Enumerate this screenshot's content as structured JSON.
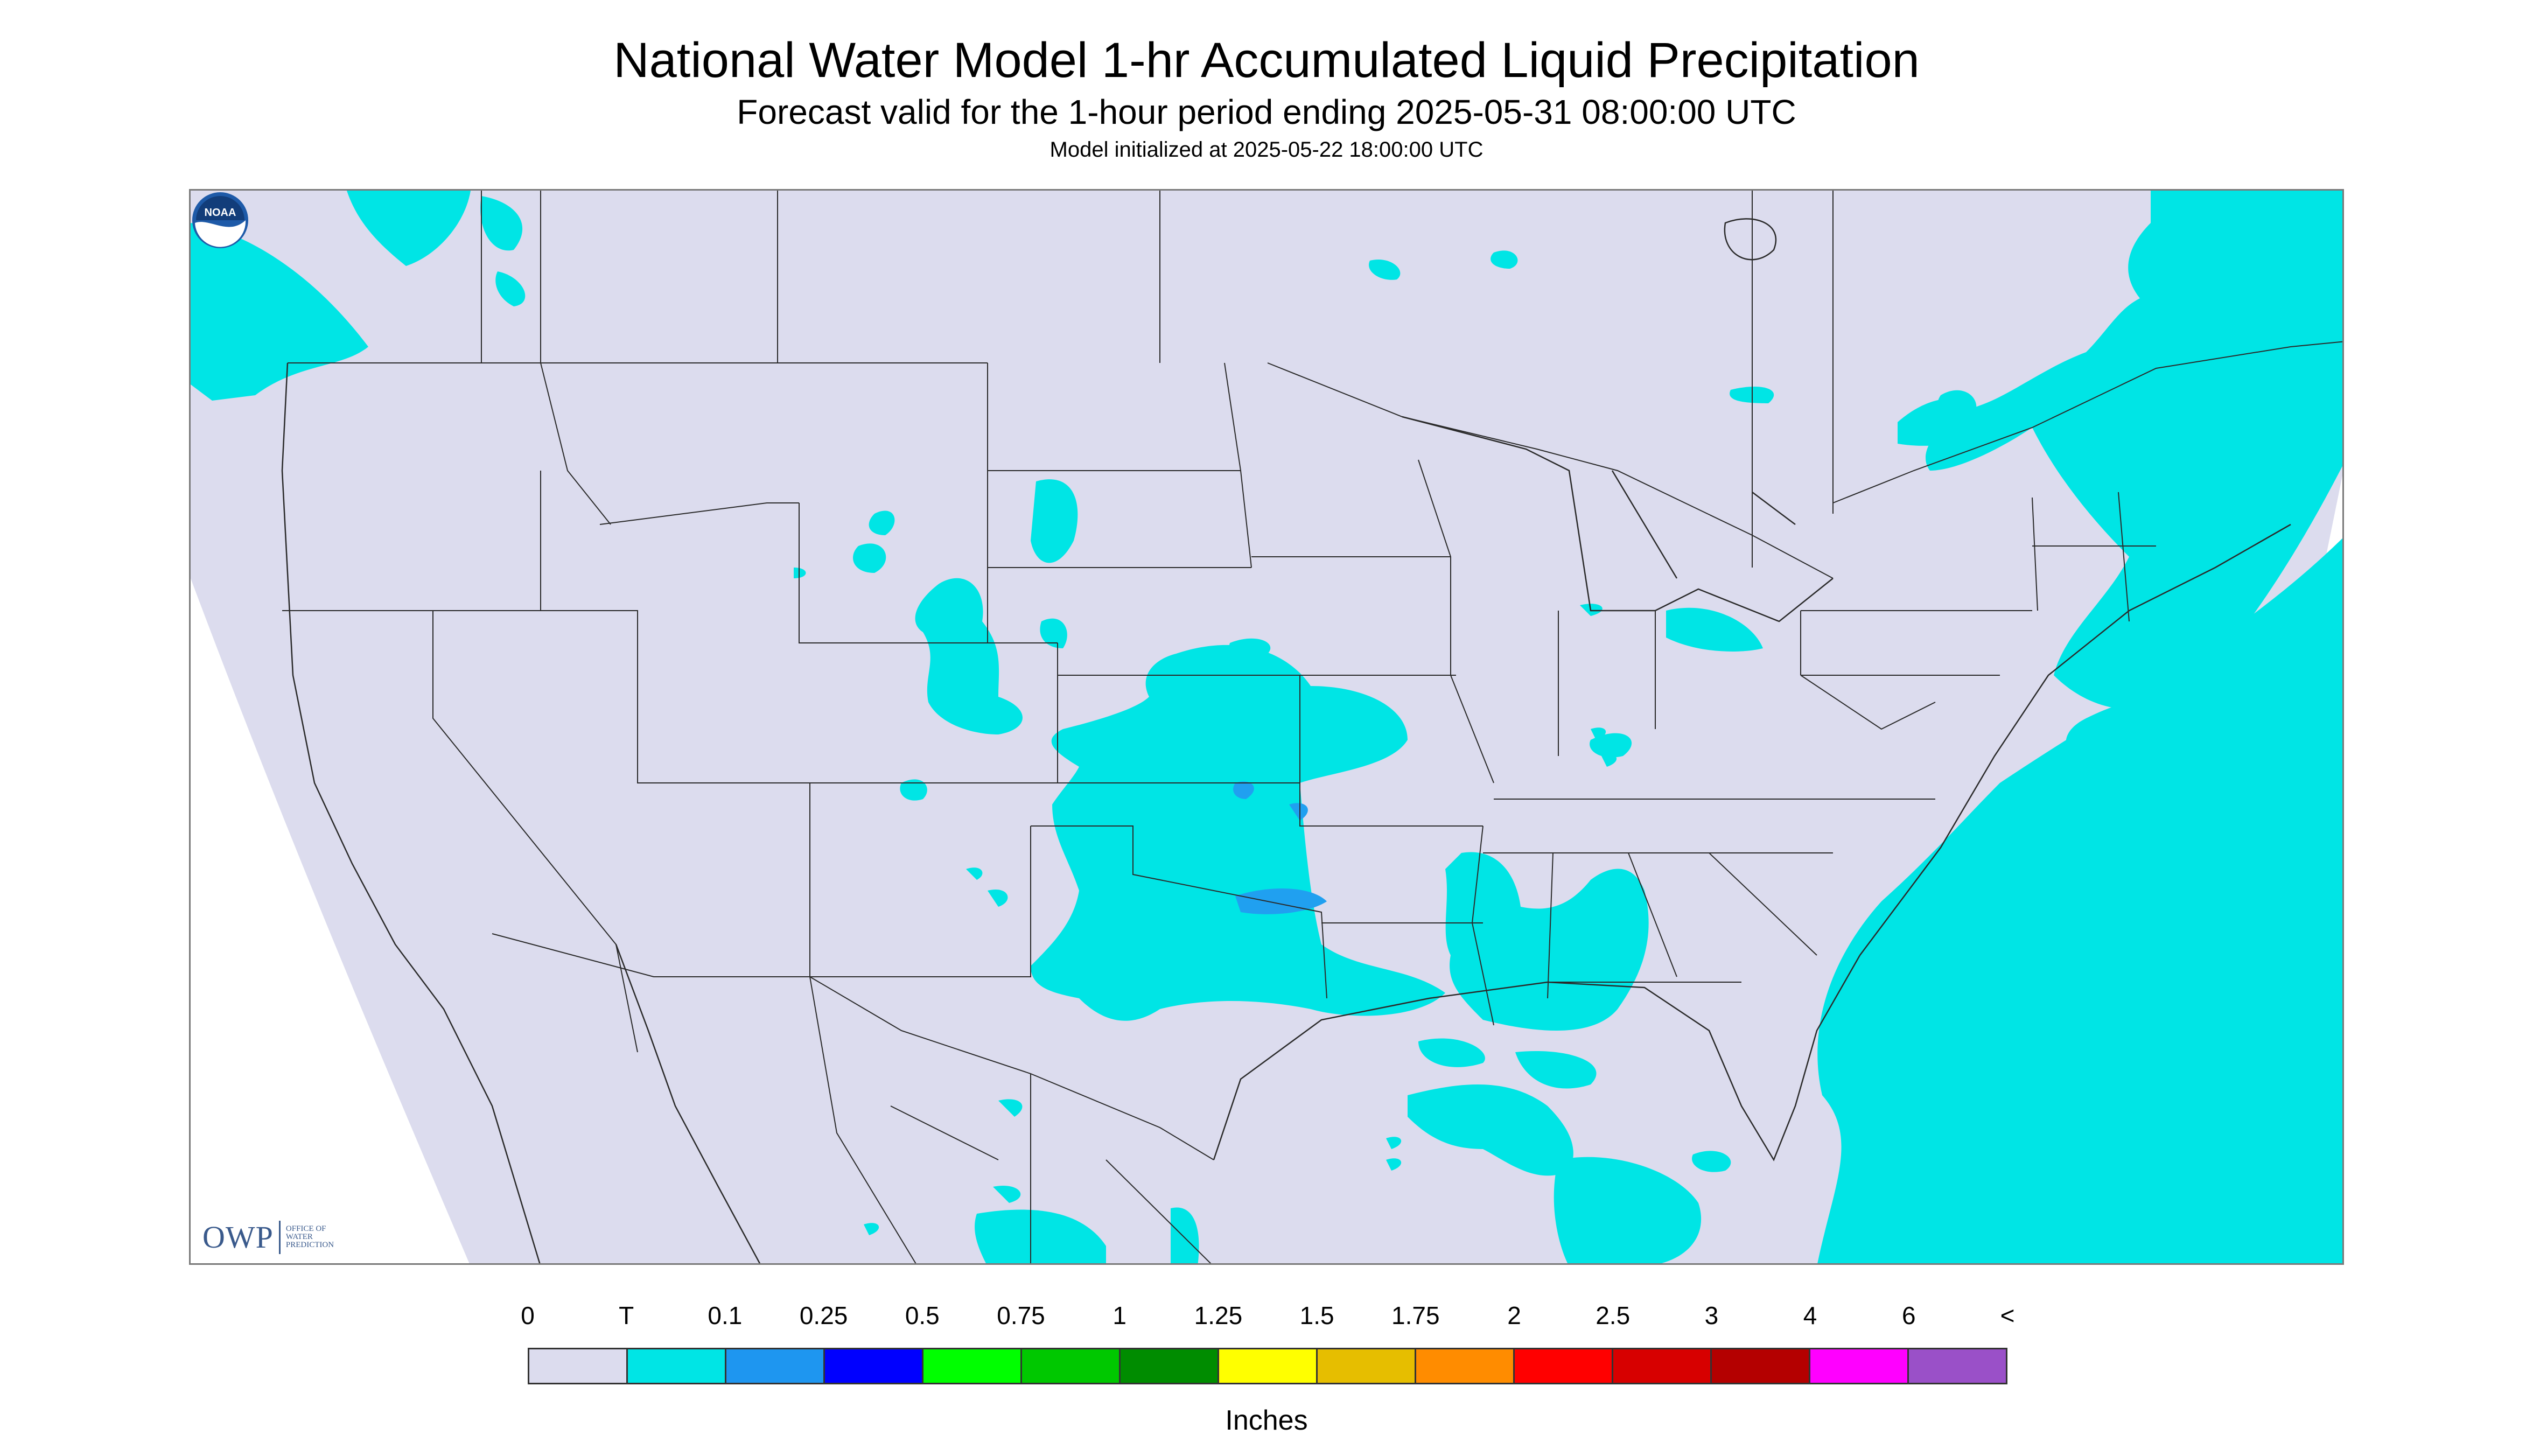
{
  "header": {
    "title": "National Water Model 1-hr Accumulated Liquid Precipitation",
    "subtitle": "Forecast valid for the 1-hour period ending 2025-05-31 08:00:00 UTC",
    "init": "Model initialized at 2025-05-22 18:00:00 UTC"
  },
  "map": {
    "background_color": "#dcdcee",
    "precip_color": "#00e5e5",
    "heavier_precip_color": "#20a0f0",
    "border_color": "#2a2a2a"
  },
  "logos": {
    "owp_mark": "OWP",
    "owp_text": [
      "OFFICE OF",
      "WATER",
      "PREDICTION"
    ],
    "noaa": "NOAA"
  },
  "legend": {
    "labels": [
      "0",
      "T",
      "0.1",
      "0.25",
      "0.5",
      "0.75",
      "1",
      "1.25",
      "1.5",
      "1.75",
      "2",
      "2.5",
      "3",
      "4",
      "6",
      "<"
    ],
    "colors": [
      "#dcdcee",
      "#00e5e5",
      "#1e96f0",
      "#0000ff",
      "#00ff00",
      "#00c800",
      "#008c00",
      "#ffff00",
      "#e6be00",
      "#ff8c00",
      "#ff0000",
      "#d70000",
      "#b40000",
      "#ff00ff",
      "#9a50c8"
    ],
    "units": "Inches"
  }
}
